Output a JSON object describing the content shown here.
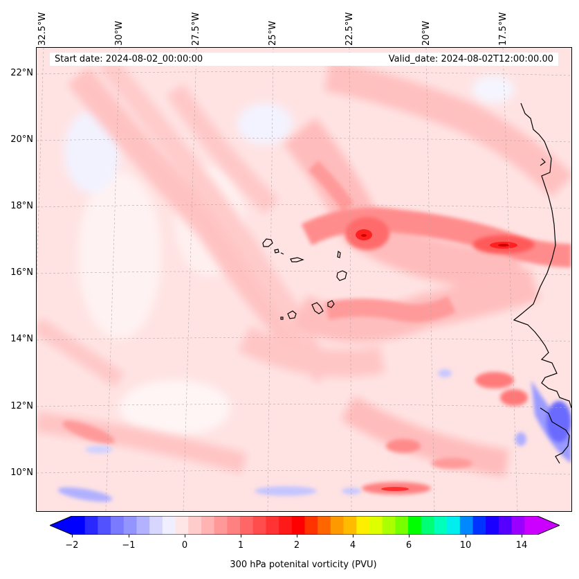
{
  "header": {
    "start_date": "Start date: 2024-08-02_00:00:00",
    "valid_date": "Valid_date: 2024-08-02T12:00:00.00"
  },
  "map": {
    "longitude_labels": [
      "32.5°W",
      "30°W",
      "27.5°W",
      "25°W",
      "22.5°W",
      "20°W",
      "17.5°W"
    ],
    "latitude_labels": [
      "22°N",
      "20°N",
      "18°N",
      "16°N",
      "14°N",
      "12°N",
      "10°N"
    ],
    "extent": {
      "lon_min": -33.0,
      "lon_max": -15.5,
      "lat_min": 8.9,
      "lat_max": 22.8
    },
    "gridlines": true,
    "features": [
      "coastline",
      "Cape Verde islands"
    ]
  },
  "colorbar": {
    "label": "300 hPa potenital vorticity (PVU)",
    "ticks": [
      "−2",
      "−1",
      "0",
      "1",
      "2",
      "4",
      "6",
      "10",
      "14"
    ],
    "extend": "both",
    "colors": [
      "#0000ff",
      "#2929ff",
      "#5252ff",
      "#7a7aff",
      "#9494ff",
      "#b2b2ff",
      "#d6d6ff",
      "#efefff",
      "#ffe6e6",
      "#ffcccc",
      "#ffb3b3",
      "#ff9999",
      "#ff8080",
      "#ff6666",
      "#ff4d4d",
      "#ff3333",
      "#ff1a1a",
      "#ff0000",
      "#ff3300",
      "#ff6600",
      "#ff9900",
      "#ffbb00",
      "#ffee00",
      "#ddff00",
      "#aaff00",
      "#77ff00",
      "#00ff00",
      "#00ff77",
      "#00ffbb",
      "#00eeee",
      "#0088ff",
      "#0033ff",
      "#1a00ff",
      "#5500ff",
      "#9900ff",
      "#cc00ff"
    ],
    "under_color": "#0000ff",
    "over_color": "#cc00ff"
  }
}
